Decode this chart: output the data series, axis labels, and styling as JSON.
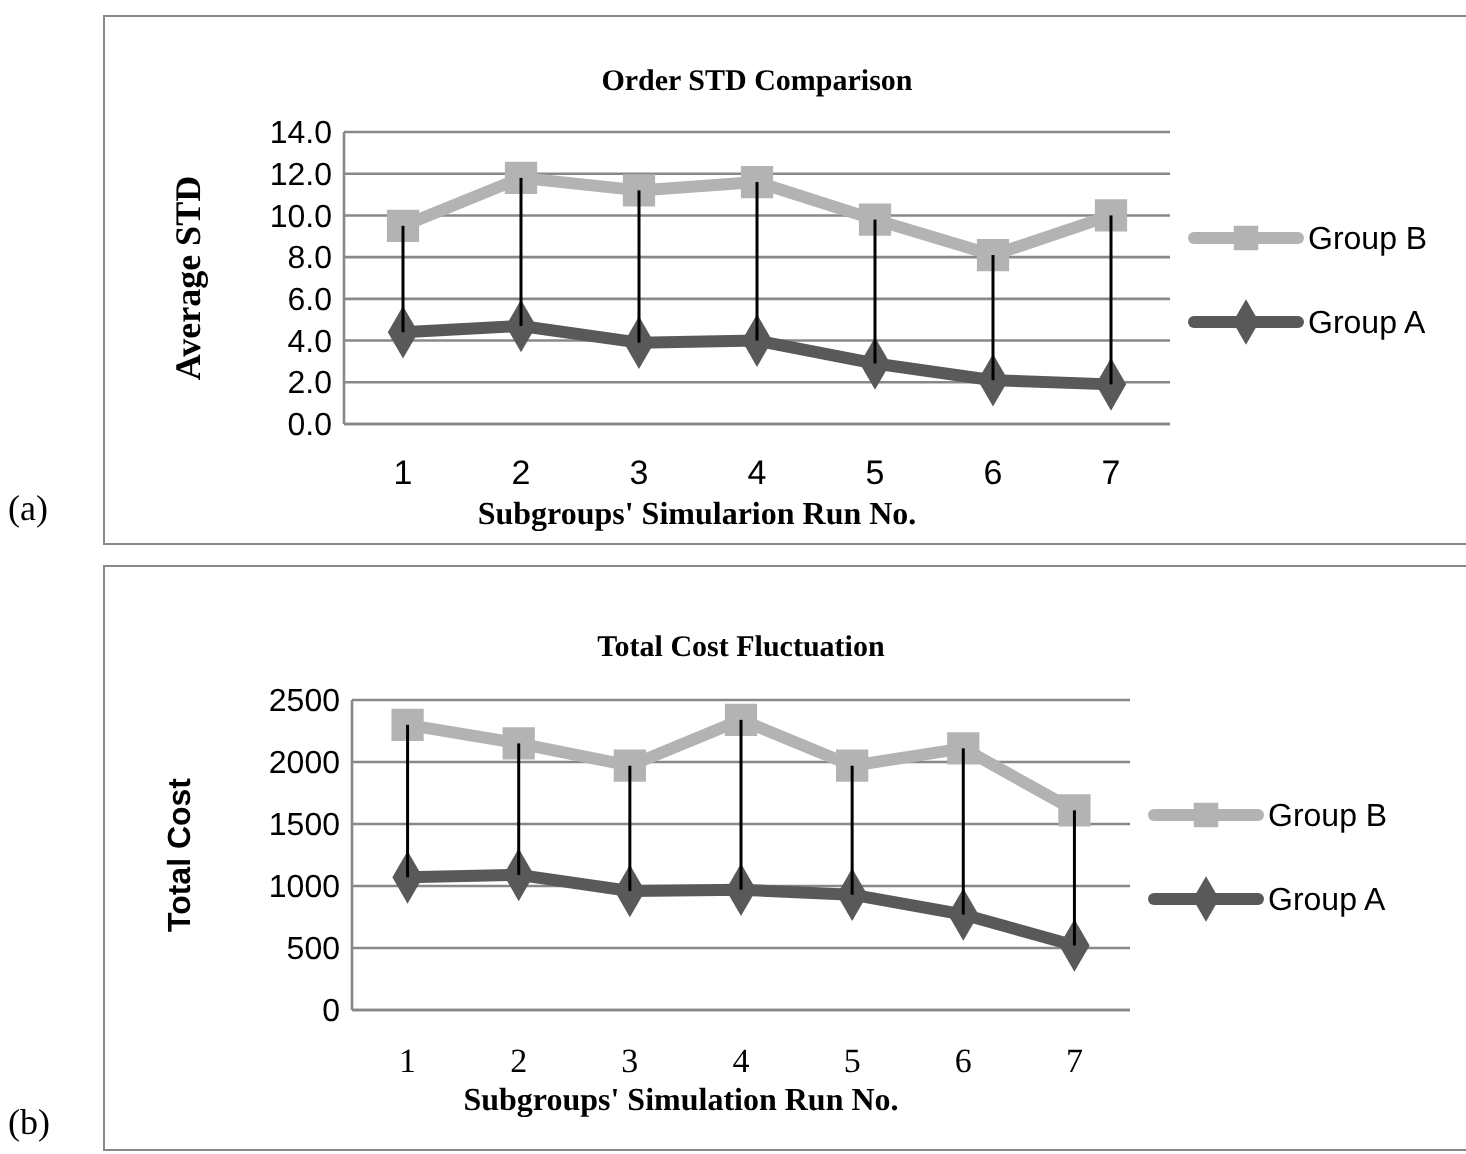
{
  "chart_data": [
    {
      "type": "line",
      "title": "Order STD Comparison",
      "xlabel": "Subgroups' Simularion Run No.",
      "ylabel": "Average STD",
      "categories": [
        "1",
        "2",
        "3",
        "4",
        "5",
        "6",
        "7"
      ],
      "series": [
        {
          "name": "Group B",
          "color": "#b3b3b3",
          "marker": "square",
          "values": [
            9.5,
            11.8,
            11.2,
            11.6,
            9.8,
            8.1,
            10.0
          ]
        },
        {
          "name": "Group A",
          "color": "#595959",
          "marker": "diamond",
          "values": [
            4.4,
            4.7,
            3.9,
            4.0,
            2.9,
            2.1,
            1.9
          ],
          "errors": [
            [
              4.4,
              9.5
            ],
            [
              4.7,
              11.8
            ],
            [
              3.9,
              11.2
            ],
            [
              4.0,
              11.6
            ],
            [
              2.9,
              9.8
            ],
            [
              2.1,
              8.1
            ],
            [
              1.9,
              10.0
            ]
          ]
        }
      ],
      "ylim": [
        0,
        14
      ],
      "yticks": [
        {
          "value": 0,
          "label": "0.0"
        },
        {
          "value": 2,
          "label": "2.0"
        },
        {
          "value": 4,
          "label": "4.0"
        },
        {
          "value": 6,
          "label": "6.0"
        },
        {
          "value": 8,
          "label": "8.0"
        },
        {
          "value": 10,
          "label": "10.0"
        },
        {
          "value": 12,
          "label": "12.0"
        },
        {
          "value": 14,
          "label": "14.0"
        }
      ],
      "grid": "y",
      "legend": "right",
      "annotations": [
        "(a)"
      ]
    },
    {
      "type": "line",
      "title": "Total Cost Fluctuation",
      "xlabel": "Subgroups' Simulation Run No.",
      "ylabel": "Total Cost",
      "categories": [
        "1",
        "2",
        "3",
        "4",
        "5",
        "6",
        "7"
      ],
      "series": [
        {
          "name": "Group B",
          "color": "#b3b3b3",
          "marker": "square",
          "values": [
            2300,
            2150,
            1970,
            2340,
            1970,
            2110,
            1610
          ]
        },
        {
          "name": "Group A",
          "color": "#595959",
          "marker": "diamond",
          "values": [
            1070,
            1090,
            960,
            970,
            930,
            770,
            520
          ],
          "errors": [
            [
              1070,
              2300
            ],
            [
              1090,
              2150
            ],
            [
              960,
              1970
            ],
            [
              970,
              2340
            ],
            [
              930,
              1970
            ],
            [
              770,
              2110
            ],
            [
              520,
              1610
            ]
          ]
        }
      ],
      "ylim": [
        0,
        2500
      ],
      "yticks": [
        0,
        500,
        1000,
        1500,
        2000,
        2500
      ],
      "grid": "y",
      "legend": "right",
      "annotations": [
        "(b)"
      ]
    }
  ]
}
